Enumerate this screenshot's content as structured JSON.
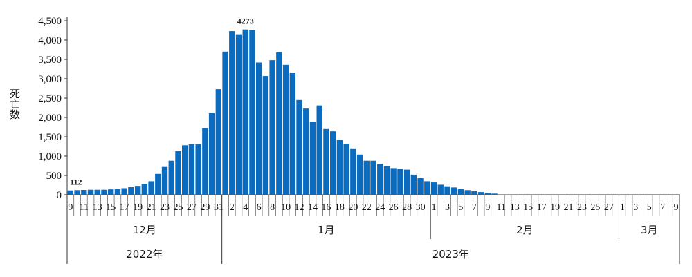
{
  "chart_data": {
    "type": "bar",
    "ylabel": "死亡数",
    "ylim": [
      0,
      4500
    ],
    "yticks": [
      "0",
      "500",
      "1,000",
      "1,500",
      "2,000",
      "2,500",
      "3,000",
      "3,500",
      "4,000",
      "4,500"
    ],
    "bar_color": "#0b6cbf",
    "annotations": [
      "112",
      "4273"
    ],
    "x": [
      "12/9",
      "12/10",
      "12/11",
      "12/12",
      "12/13",
      "12/14",
      "12/15",
      "12/16",
      "12/17",
      "12/18",
      "12/19",
      "12/20",
      "12/21",
      "12/22",
      "12/23",
      "12/24",
      "12/25",
      "12/26",
      "12/27",
      "12/28",
      "12/29",
      "12/30",
      "12/31",
      "1/1",
      "1/2",
      "1/3",
      "1/4",
      "1/5",
      "1/6",
      "1/7",
      "1/8",
      "1/9",
      "1/10",
      "1/11",
      "1/12",
      "1/13",
      "1/14",
      "1/15",
      "1/16",
      "1/17",
      "1/18",
      "1/19",
      "1/20",
      "1/21",
      "1/22",
      "1/23",
      "1/24",
      "1/25",
      "1/26",
      "1/27",
      "1/28",
      "1/29",
      "1/30",
      "1/31",
      "2/1",
      "2/2",
      "2/3",
      "2/4",
      "2/5",
      "2/6",
      "2/7",
      "2/8",
      "2/9",
      "2/10",
      "2/11",
      "2/12",
      "2/13",
      "2/14",
      "2/15",
      "2/16",
      "2/17",
      "2/18",
      "2/19",
      "2/20",
      "2/21",
      "2/22",
      "2/23",
      "2/24",
      "2/25",
      "2/26",
      "2/27",
      "2/28",
      "3/1",
      "3/2",
      "3/3",
      "3/4",
      "3/5",
      "3/6",
      "3/7",
      "3/8",
      "3/9"
    ],
    "values": [
      112,
      120,
      125,
      130,
      130,
      130,
      140,
      150,
      170,
      200,
      230,
      280,
      350,
      540,
      720,
      880,
      1130,
      1280,
      1310,
      1310,
      1720,
      2110,
      2730,
      3700,
      4230,
      4150,
      4273,
      4260,
      3420,
      3070,
      3480,
      3680,
      3360,
      3160,
      2450,
      2230,
      1890,
      2310,
      1700,
      1640,
      1420,
      1320,
      1200,
      1040,
      880,
      880,
      800,
      740,
      690,
      670,
      650,
      520,
      430,
      350,
      320,
      260,
      220,
      190,
      150,
      120,
      90,
      70,
      50,
      30,
      10,
      5,
      0,
      0,
      0,
      0,
      0,
      0,
      0,
      0,
      0,
      0,
      0,
      0,
      0,
      0,
      0,
      0,
      0,
      0,
      0,
      0,
      0,
      0,
      0,
      0,
      0
    ],
    "tick_labels": [
      {
        "index": 0,
        "label": "9"
      },
      {
        "index": 2,
        "label": "11"
      },
      {
        "index": 4,
        "label": "13"
      },
      {
        "index": 6,
        "label": "15"
      },
      {
        "index": 8,
        "label": "17"
      },
      {
        "index": 10,
        "label": "19"
      },
      {
        "index": 12,
        "label": "21"
      },
      {
        "index": 14,
        "label": "23"
      },
      {
        "index": 16,
        "label": "25"
      },
      {
        "index": 18,
        "label": "27"
      },
      {
        "index": 20,
        "label": "29"
      },
      {
        "index": 22,
        "label": "31"
      },
      {
        "index": 24,
        "label": "2"
      },
      {
        "index": 26,
        "label": "4"
      },
      {
        "index": 28,
        "label": "6"
      },
      {
        "index": 30,
        "label": "8"
      },
      {
        "index": 32,
        "label": "10"
      },
      {
        "index": 34,
        "label": "12"
      },
      {
        "index": 36,
        "label": "14"
      },
      {
        "index": 38,
        "label": "16"
      },
      {
        "index": 40,
        "label": "18"
      },
      {
        "index": 42,
        "label": "20"
      },
      {
        "index": 44,
        "label": "22"
      },
      {
        "index": 46,
        "label": "24"
      },
      {
        "index": 48,
        "label": "26"
      },
      {
        "index": 50,
        "label": "28"
      },
      {
        "index": 52,
        "label": "30"
      },
      {
        "index": 54,
        "label": "1"
      },
      {
        "index": 56,
        "label": "3"
      },
      {
        "index": 58,
        "label": "5"
      },
      {
        "index": 60,
        "label": "7"
      },
      {
        "index": 62,
        "label": "9"
      },
      {
        "index": 64,
        "label": "11"
      },
      {
        "index": 66,
        "label": "13"
      },
      {
        "index": 68,
        "label": "15"
      },
      {
        "index": 70,
        "label": "17"
      },
      {
        "index": 72,
        "label": "19"
      },
      {
        "index": 74,
        "label": "21"
      },
      {
        "index": 76,
        "label": "23"
      },
      {
        "index": 78,
        "label": "25"
      },
      {
        "index": 80,
        "label": "27"
      },
      {
        "index": 82,
        "label": "1"
      },
      {
        "index": 84,
        "label": "3"
      },
      {
        "index": 86,
        "label": "5"
      },
      {
        "index": 88,
        "label": "7"
      },
      {
        "index": 90,
        "label": "9"
      }
    ],
    "months": [
      {
        "label": "12月",
        "start": 0,
        "end": 22
      },
      {
        "label": "1月",
        "start": 23,
        "end": 53
      },
      {
        "label": "2月",
        "start": 54,
        "end": 81
      },
      {
        "label": "3月",
        "start": 82,
        "end": 90
      }
    ],
    "years": [
      {
        "label": "2022年",
        "start": 0,
        "end": 22
      },
      {
        "label": "2023年",
        "start": 23,
        "end": 90
      }
    ]
  }
}
